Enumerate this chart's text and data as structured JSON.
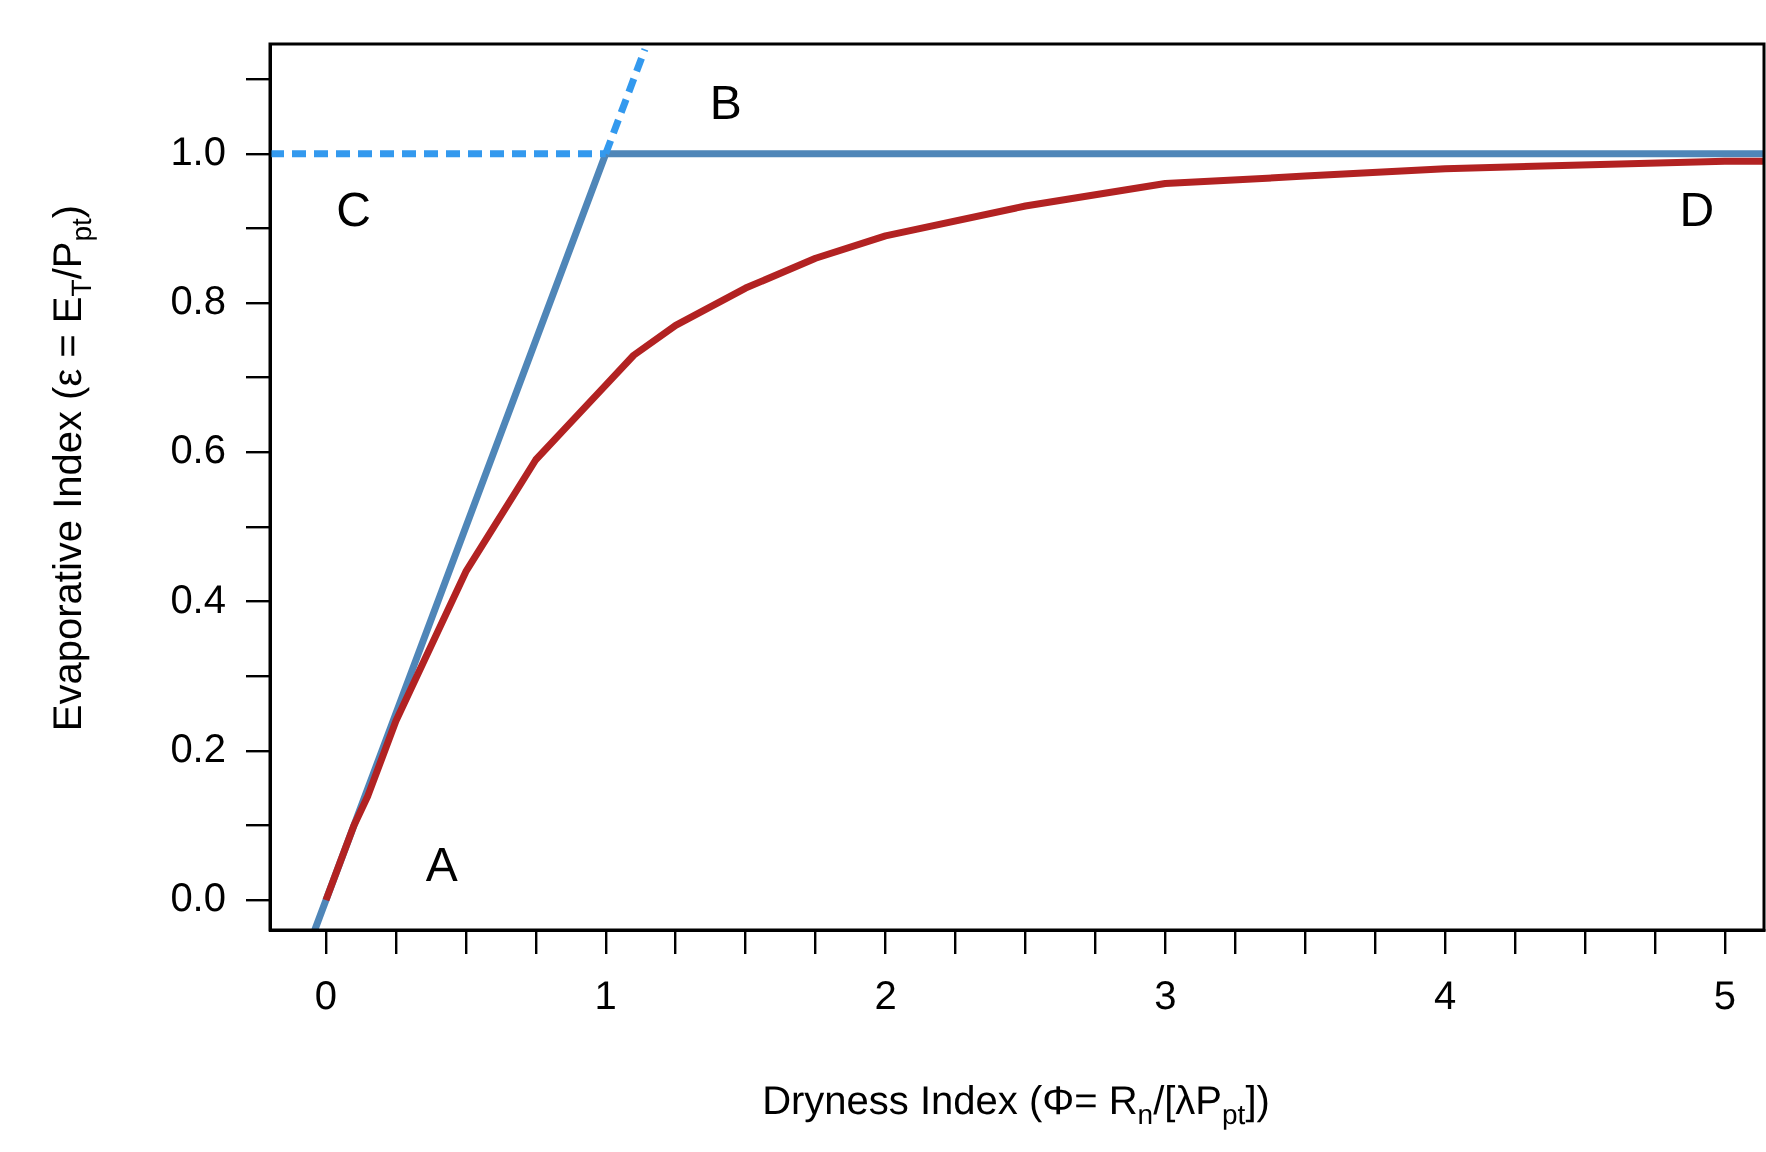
{
  "chart_data": {
    "type": "line",
    "xlabel": "Dryness Index  (Φ= R$_{n}$/[λP$_{pt}$])",
    "ylabel": "Evaporative Index  (ε = E$_{T}$/P$_{pt}$)",
    "xlim": [
      -0.2,
      5.14
    ],
    "ylim": [
      -0.04,
      1.147
    ],
    "xticks": [
      0,
      {
        "value": 0.25,
        "label": null
      },
      {
        "value": 0.5,
        "label": null
      },
      {
        "value": 0.75,
        "label": null
      },
      1,
      {
        "value": 1.25,
        "label": null
      },
      {
        "value": 1.5,
        "label": null
      },
      {
        "value": 1.75,
        "label": null
      },
      2,
      {
        "value": 2.25,
        "label": null
      },
      {
        "value": 2.5,
        "label": null
      },
      {
        "value": 2.75,
        "label": null
      },
      3,
      {
        "value": 3.25,
        "label": null
      },
      {
        "value": 3.5,
        "label": null
      },
      {
        "value": 3.75,
        "label": null
      },
      4,
      {
        "value": 4.25,
        "label": null
      },
      {
        "value": 4.5,
        "label": null
      },
      {
        "value": 4.75,
        "label": null
      },
      5
    ],
    "yticks": [
      {
        "value": 0,
        "label": "0.0"
      },
      {
        "value": 0.1,
        "label": null
      },
      {
        "value": 0.2,
        "label": "0.2"
      },
      {
        "value": 0.3,
        "label": null
      },
      {
        "value": 0.4,
        "label": "0.4"
      },
      {
        "value": 0.5,
        "label": null
      },
      {
        "value": 0.6,
        "label": "0.6"
      },
      {
        "value": 0.7,
        "label": null
      },
      {
        "value": 0.8,
        "label": "0.8"
      },
      {
        "value": 0.9,
        "label": null
      },
      {
        "value": 1,
        "label": "1.0"
      },
      {
        "value": 1.1,
        "label": null
      }
    ],
    "grid": false,
    "legend": false,
    "marker": "none",
    "series": [
      {
        "color": "#b22222",
        "x": [
          0,
          0.05,
          0.1,
          0.15,
          0.25,
          0.35,
          0.5,
          0.6,
          0.75,
          0.85,
          1,
          1.1,
          1.25,
          1.5,
          1.75,
          2,
          2.5,
          3,
          3.5,
          4,
          5,
          5.14
        ],
        "values": [
          0,
          0.05,
          0.1,
          0.14,
          0.24,
          0.32,
          0.44,
          0.5,
          0.59,
          0.63,
          0.69,
          0.73,
          0.77,
          0.82,
          0.86,
          0.89,
          0.93,
          0.96,
          0.97,
          0.98,
          0.99,
          0.99
        ]
      },
      {
        "color": "#3399ee",
        "line_style": "dashed",
        "x": [
          -0.2,
          1
        ],
        "values": [
          1,
          1
        ]
      },
      {
        "color": "#3399ee",
        "line_style": "dashed",
        "x": [
          1,
          1.14
        ],
        "values": [
          1,
          1.14
        ]
      },
      {
        "color": "#4f86b8",
        "x": [
          -0.04,
          1,
          5.14
        ],
        "values": [
          -0.04,
          1,
          1
        ]
      }
    ],
    "annotations": [
      "A",
      "B",
      "C",
      "D"
    ]
  }
}
